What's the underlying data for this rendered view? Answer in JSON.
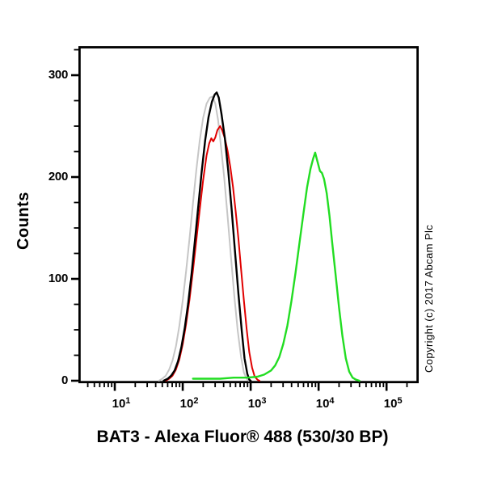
{
  "figure": {
    "title": "BAT3 - Alexa Fluor® 488 (530/30 BP)",
    "y_axis_label": "Counts",
    "copyright_vertical": "Copyright (c) 2017 Abcam Plc",
    "background_color": "#ffffff",
    "axis_color": "#000000"
  },
  "chart_data": {
    "type": "line",
    "subtype": "flow-cytometry-histogram-overlay",
    "title": "",
    "xlabel": "BAT3 - Alexa Fluor® 488 (530/30 BP)",
    "ylabel": "Counts",
    "x_scale": "log10",
    "xlim_log10": [
      0.5,
      5.45
    ],
    "ylim": [
      0,
      327
    ],
    "x_major_ticks_log10": [
      1,
      2,
      3,
      4,
      5
    ],
    "x_tick_base": "10",
    "y_major_ticks": [
      0,
      100,
      200,
      300
    ],
    "y_minor_tick_step": 25,
    "grid": false,
    "legend": "none",
    "series": [
      {
        "name": "grey-control",
        "color": "#c6c6c6",
        "stroke_width": 2,
        "peak_x_value": 275,
        "peak_counts": 279,
        "points_log10x_counts": [
          [
            1.65,
            0
          ],
          [
            1.7,
            2
          ],
          [
            1.75,
            5
          ],
          [
            1.8,
            11
          ],
          [
            1.85,
            20
          ],
          [
            1.9,
            34
          ],
          [
            1.95,
            54
          ],
          [
            2.0,
            79
          ],
          [
            2.05,
            108
          ],
          [
            2.1,
            140
          ],
          [
            2.15,
            174
          ],
          [
            2.2,
            207
          ],
          [
            2.25,
            236
          ],
          [
            2.3,
            258
          ],
          [
            2.35,
            272
          ],
          [
            2.4,
            278
          ],
          [
            2.44,
            279
          ],
          [
            2.48,
            272
          ],
          [
            2.52,
            256
          ],
          [
            2.56,
            232
          ],
          [
            2.61,
            200
          ],
          [
            2.66,
            162
          ],
          [
            2.71,
            122
          ],
          [
            2.76,
            83
          ],
          [
            2.81,
            49
          ],
          [
            2.86,
            23
          ],
          [
            2.9,
            8
          ],
          [
            2.94,
            2
          ],
          [
            2.97,
            0
          ]
        ]
      },
      {
        "name": "red-control",
        "color": "#e00000",
        "stroke_width": 2,
        "peak_x_value": 355,
        "peak_counts": 250,
        "points_log10x_counts": [
          [
            1.75,
            0
          ],
          [
            1.8,
            2
          ],
          [
            1.85,
            5
          ],
          [
            1.9,
            11
          ],
          [
            1.95,
            21
          ],
          [
            2.0,
            36
          ],
          [
            2.05,
            56
          ],
          [
            2.1,
            80
          ],
          [
            2.15,
            108
          ],
          [
            2.2,
            138
          ],
          [
            2.25,
            168
          ],
          [
            2.3,
            197
          ],
          [
            2.35,
            221
          ],
          [
            2.39,
            233
          ],
          [
            2.42,
            238
          ],
          [
            2.45,
            235
          ],
          [
            2.48,
            239
          ],
          [
            2.51,
            246
          ],
          [
            2.55,
            250
          ],
          [
            2.58,
            246
          ],
          [
            2.62,
            238
          ],
          [
            2.66,
            226
          ],
          [
            2.7,
            210
          ],
          [
            2.74,
            190
          ],
          [
            2.78,
            166
          ],
          [
            2.82,
            139
          ],
          [
            2.86,
            109
          ],
          [
            2.9,
            79
          ],
          [
            2.94,
            51
          ],
          [
            2.98,
            28
          ],
          [
            3.02,
            13
          ],
          [
            3.06,
            4
          ],
          [
            3.1,
            1
          ],
          [
            3.13,
            0
          ]
        ]
      },
      {
        "name": "black-control",
        "color": "#000000",
        "stroke_width": 2.4,
        "peak_x_value": 316,
        "peak_counts": 283,
        "points_log10x_counts": [
          [
            1.72,
            0
          ],
          [
            1.78,
            2
          ],
          [
            1.83,
            5
          ],
          [
            1.88,
            10
          ],
          [
            1.93,
            19
          ],
          [
            1.98,
            33
          ],
          [
            2.03,
            52
          ],
          [
            2.08,
            76
          ],
          [
            2.13,
            105
          ],
          [
            2.18,
            138
          ],
          [
            2.23,
            172
          ],
          [
            2.28,
            206
          ],
          [
            2.33,
            236
          ],
          [
            2.38,
            259
          ],
          [
            2.43,
            274
          ],
          [
            2.47,
            281
          ],
          [
            2.5,
            283
          ],
          [
            2.53,
            278
          ],
          [
            2.57,
            262
          ],
          [
            2.62,
            238
          ],
          [
            2.67,
            206
          ],
          [
            2.72,
            168
          ],
          [
            2.77,
            126
          ],
          [
            2.82,
            85
          ],
          [
            2.87,
            48
          ],
          [
            2.91,
            22
          ],
          [
            2.95,
            7
          ],
          [
            2.98,
            1
          ],
          [
            3.0,
            0
          ]
        ]
      },
      {
        "name": "green-bat3-alexa488",
        "color": "#22dd22",
        "stroke_width": 2.4,
        "peak_x_value": 8900,
        "peak_counts": 224,
        "points_log10x_counts": [
          [
            2.15,
            2
          ],
          [
            2.35,
            2
          ],
          [
            2.55,
            2
          ],
          [
            2.75,
            3
          ],
          [
            2.95,
            3
          ],
          [
            3.1,
            4
          ],
          [
            3.2,
            6
          ],
          [
            3.3,
            10
          ],
          [
            3.36,
            15
          ],
          [
            3.42,
            23
          ],
          [
            3.48,
            36
          ],
          [
            3.54,
            54
          ],
          [
            3.6,
            78
          ],
          [
            3.66,
            106
          ],
          [
            3.72,
            136
          ],
          [
            3.78,
            166
          ],
          [
            3.83,
            190
          ],
          [
            3.88,
            208
          ],
          [
            3.92,
            218
          ],
          [
            3.95,
            224
          ],
          [
            3.98,
            216
          ],
          [
            4.02,
            206
          ],
          [
            4.05,
            204
          ],
          [
            4.08,
            198
          ],
          [
            4.12,
            184
          ],
          [
            4.16,
            162
          ],
          [
            4.2,
            136
          ],
          [
            4.25,
            104
          ],
          [
            4.3,
            72
          ],
          [
            4.35,
            44
          ],
          [
            4.4,
            22
          ],
          [
            4.45,
            9
          ],
          [
            4.5,
            3
          ],
          [
            4.55,
            1
          ],
          [
            4.6,
            0
          ]
        ]
      }
    ]
  }
}
